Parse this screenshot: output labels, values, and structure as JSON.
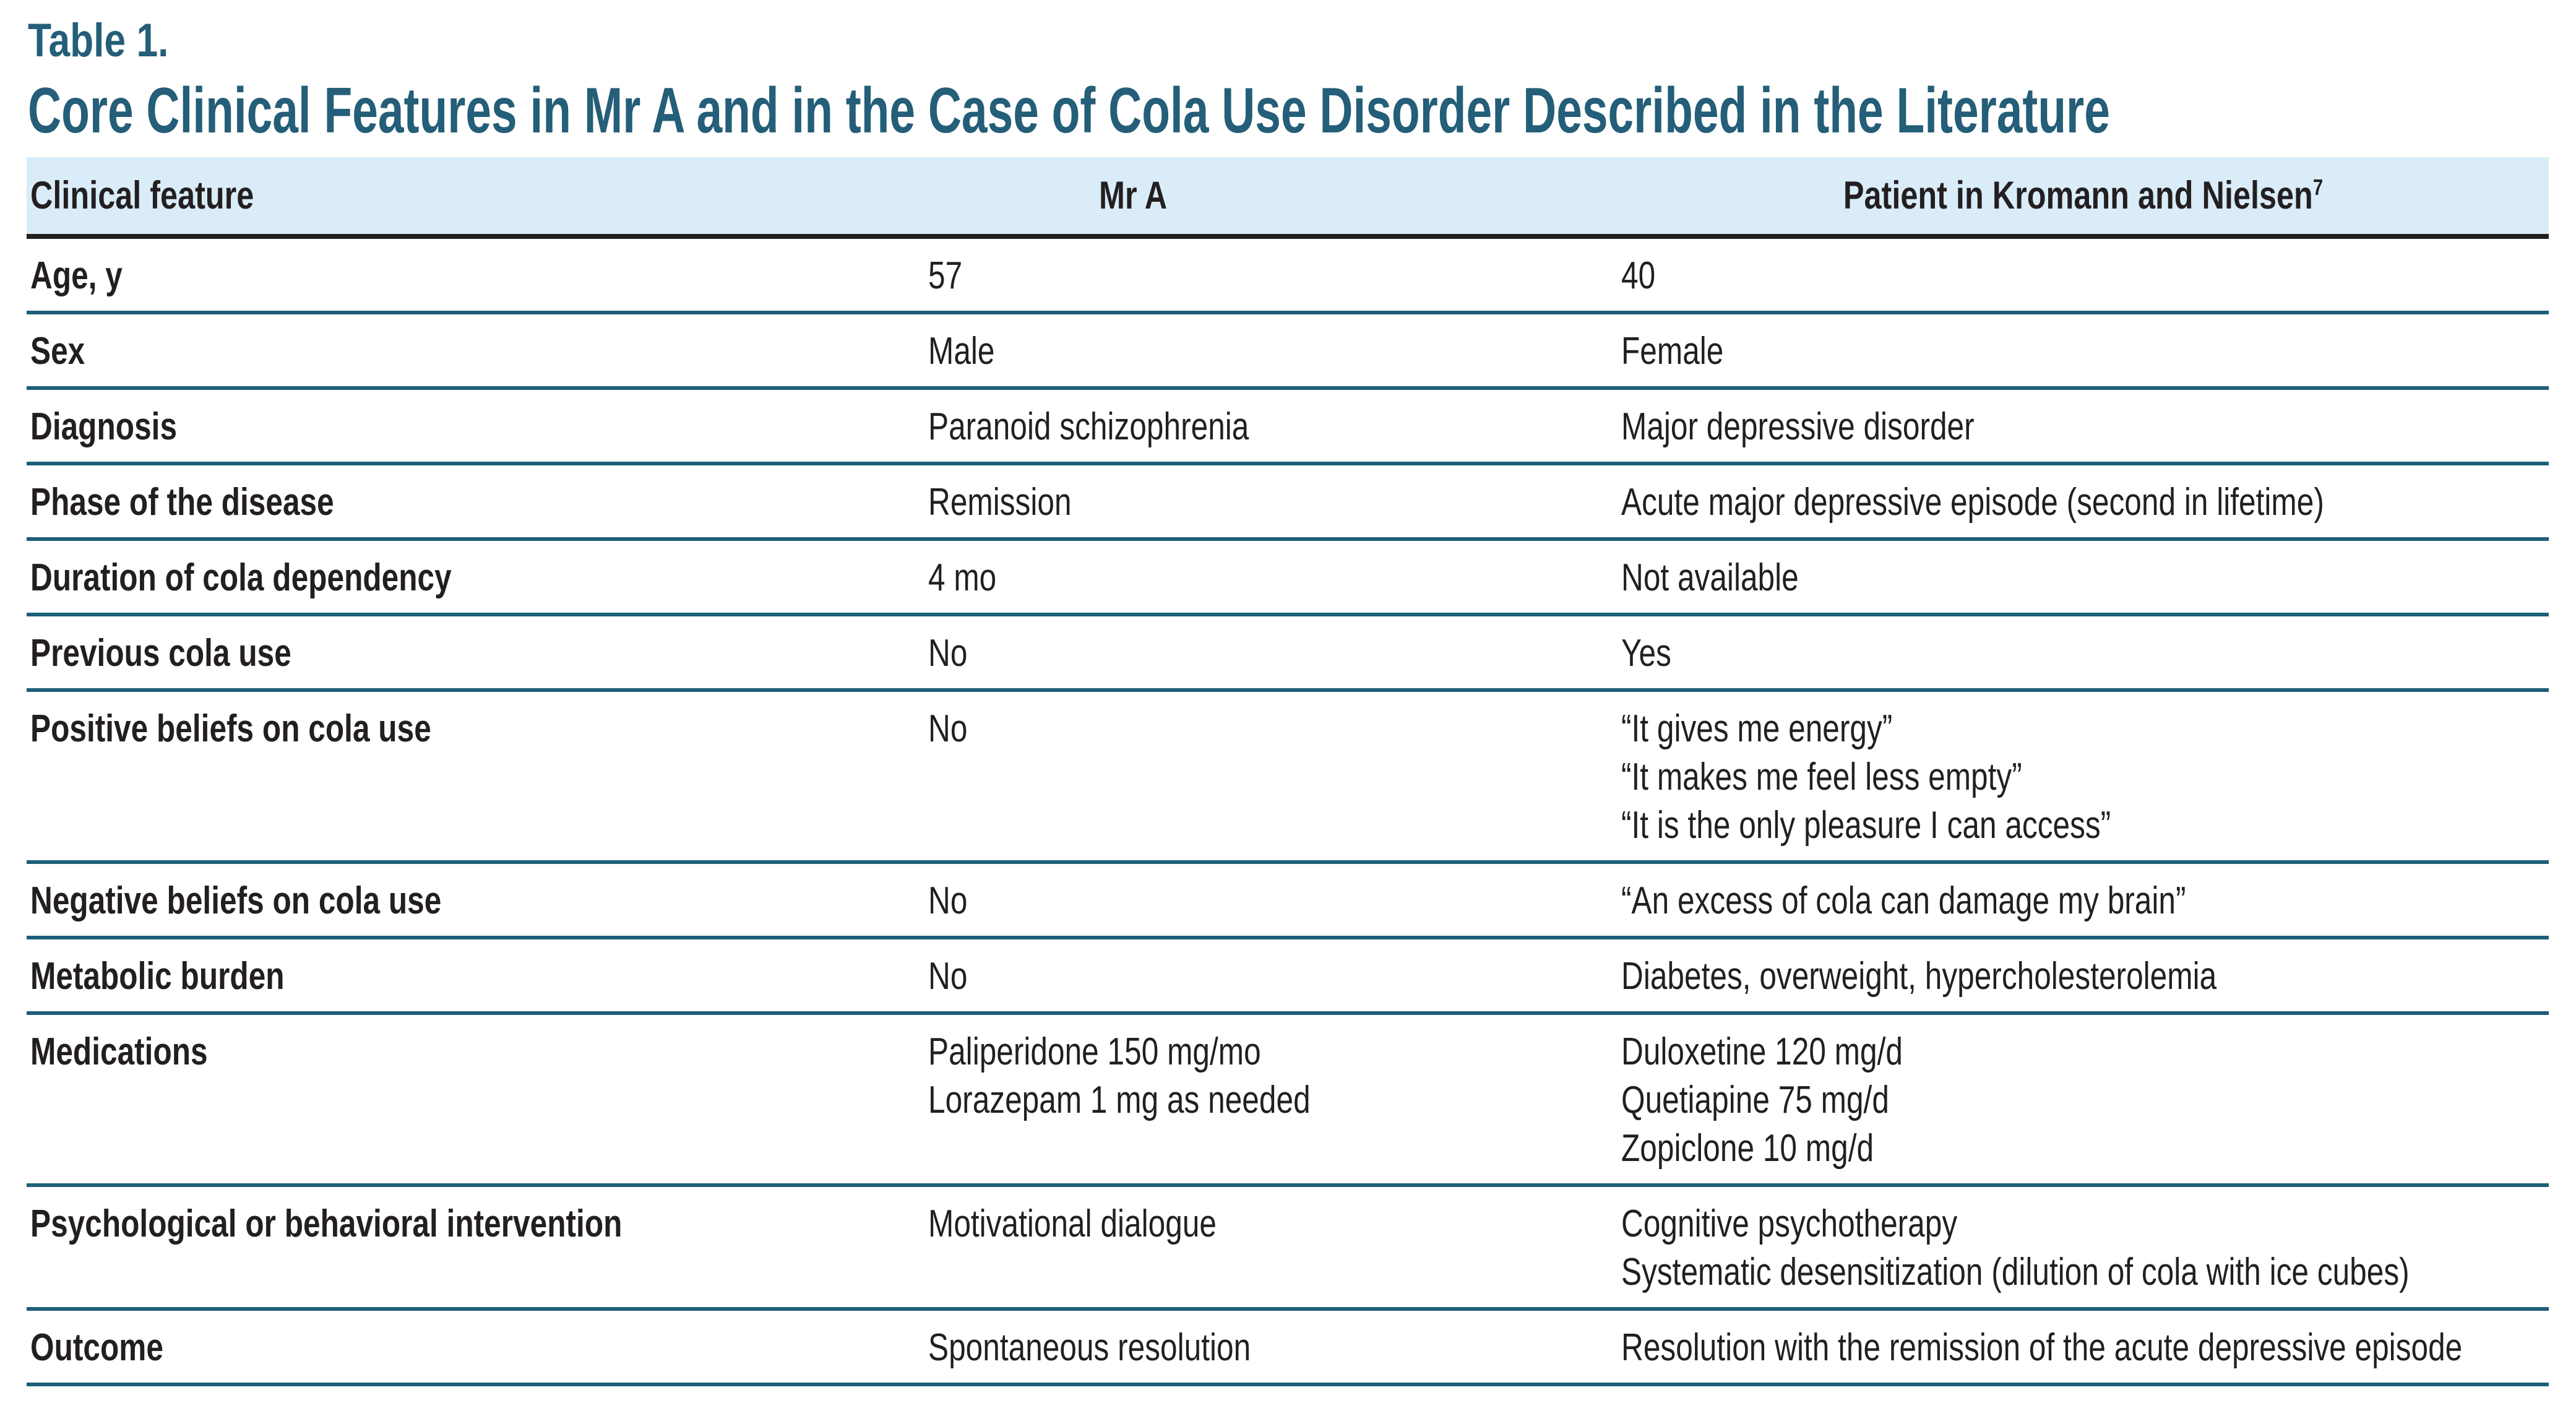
{
  "page": {
    "label": "Table 1.",
    "title": "Core Clinical Features in Mr A and in the Case of Cola Use Disorder Described in the Literature"
  },
  "table": {
    "columns": [
      {
        "label": "Clinical feature"
      },
      {
        "label": "Mr A"
      },
      {
        "label": "Patient in Kromann and Nielsen",
        "superscript": "7"
      }
    ],
    "rows": [
      {
        "feature": "Age, y",
        "mr_a": "57",
        "patient": "40"
      },
      {
        "feature": "Sex",
        "mr_a": "Male",
        "patient": "Female"
      },
      {
        "feature": "Diagnosis",
        "mr_a": "Paranoid schizophrenia",
        "patient": "Major depressive disorder"
      },
      {
        "feature": "Phase of the disease",
        "mr_a": "Remission",
        "patient": "Acute major depressive episode (second in lifetime)"
      },
      {
        "feature": "Duration of cola dependency",
        "mr_a": "4 mo",
        "patient": "Not available"
      },
      {
        "feature": "Previous cola use",
        "mr_a": "No",
        "patient": "Yes"
      },
      {
        "feature": "Positive beliefs on cola use",
        "mr_a": "No",
        "patient": "“It gives me energy”\n“It makes me feel less empty”\n“It is the only pleasure I can access”"
      },
      {
        "feature": "Negative beliefs on cola use",
        "mr_a": "No",
        "patient": "“An excess of cola can damage my brain”"
      },
      {
        "feature": "Metabolic burden",
        "mr_a": "No",
        "patient": "Diabetes, overweight, hypercholesterolemia"
      },
      {
        "feature": "Medications",
        "mr_a": "Paliperidone 150 mg/mo\nLorazepam 1 mg as needed",
        "patient": "Duloxetine 120 mg/d\nQuetiapine 75 mg/d\nZopiclone 10 mg/d"
      },
      {
        "feature": "Psychological or behavioral intervention",
        "mr_a": "Motivational dialogue",
        "patient": "Cognitive psychotherapy\nSystematic desensitization (dilution of cola with ice cubes)"
      },
      {
        "feature": "Outcome",
        "mr_a": "Spontaneous resolution",
        "patient": "Resolution with the remission of the acute depressive episode"
      }
    ]
  },
  "colors": {
    "accent_teal": "#245e78",
    "divider_teal": "#1d5f78",
    "header_bg": "#d9ecf8",
    "text": "#231f20"
  }
}
